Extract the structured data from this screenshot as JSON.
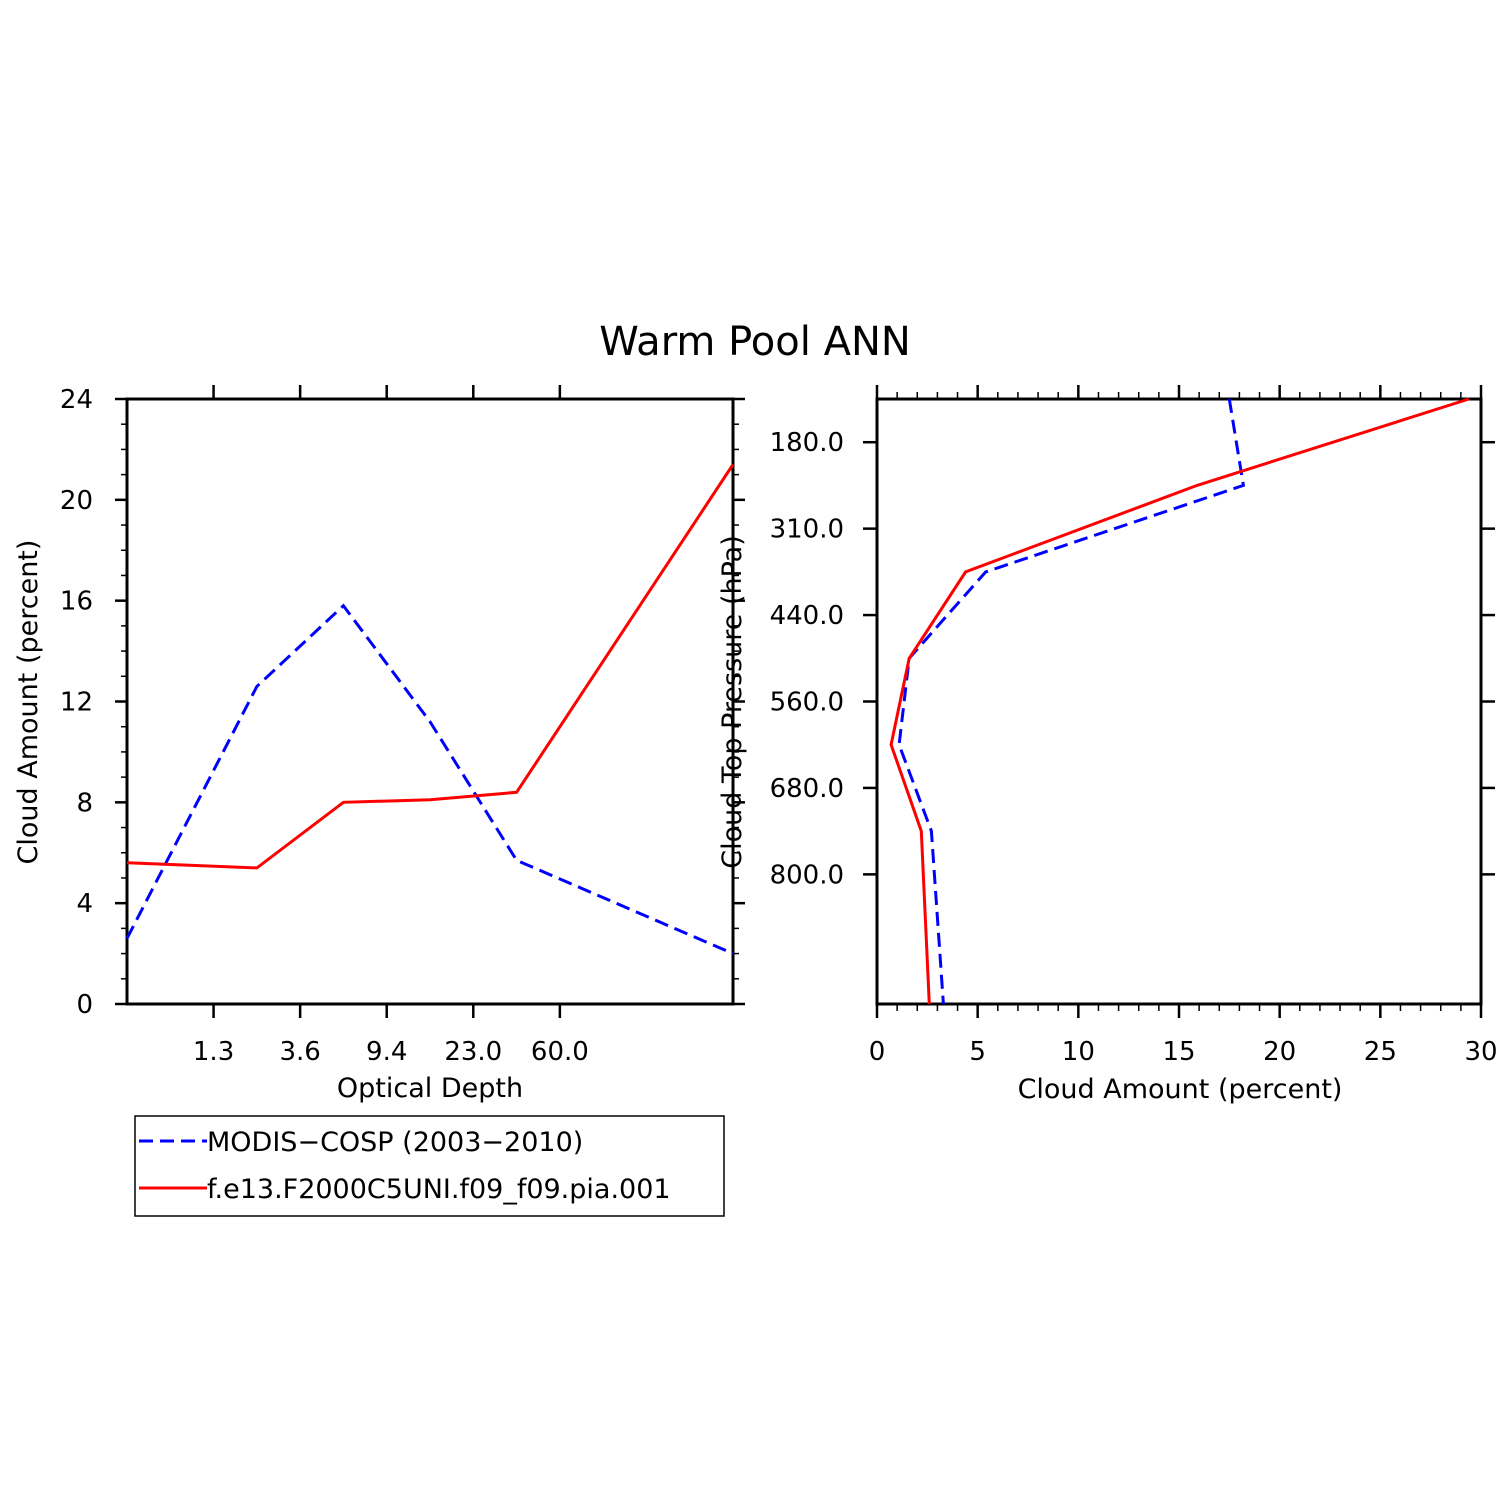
{
  "title": "Warm Pool ANN",
  "colors": {
    "obs": "#0000ff",
    "model": "#ff0000"
  },
  "legend": {
    "placement": "below-left",
    "items": [
      {
        "label": "MODIS−COSP (2003−2010)",
        "color": "#0000ff",
        "dash": "dashed"
      },
      {
        "label": "f.e13.F2000C5UNI.f09_f09.pia.001",
        "color": "#ff0000",
        "dash": "solid"
      }
    ]
  },
  "chart_data": [
    {
      "type": "line",
      "xlabel": "Optical Depth",
      "ylabel": "Cloud Amount (percent)",
      "ylim": [
        0,
        24
      ],
      "yticks": [
        "0",
        "4",
        "8",
        "12",
        "16",
        "20",
        "24"
      ],
      "xtick_labels": [
        "1.3",
        "3.6",
        "9.4",
        "23.0",
        "60.0"
      ],
      "x_bins": 7,
      "series": [
        {
          "name": "MODIS−COSP (2003−2010)",
          "values": [
            2.6,
            12.6,
            15.8,
            11.2,
            5.7,
            2.0
          ]
        },
        {
          "name": "f.e13.F2000C5UNI.f09_f09.pia.001",
          "values": [
            5.6,
            5.4,
            8.0,
            8.1,
            8.4,
            21.4
          ]
        }
      ]
    },
    {
      "type": "line",
      "xlabel": "Cloud Amount (percent)",
      "ylabel": "Cloud Top Pressure (hPa)",
      "xlim": [
        0,
        30
      ],
      "xticks": [
        "0",
        "5",
        "10",
        "15",
        "20",
        "25",
        "30"
      ],
      "ytick_labels": [
        "180.0",
        "310.0",
        "440.0",
        "560.0",
        "680.0",
        "800.0"
      ],
      "y_bins": 7,
      "series": [
        {
          "name": "MODIS−COSP (2003−2010)",
          "values": [
            17.5,
            18.2,
            5.4,
            1.6,
            1.1,
            2.7,
            3.3
          ]
        },
        {
          "name": "f.e13.F2000C5UNI.f09_f09.pia.001",
          "values": [
            29.4,
            15.9,
            4.4,
            1.6,
            0.7,
            2.2,
            2.6
          ]
        }
      ]
    }
  ]
}
